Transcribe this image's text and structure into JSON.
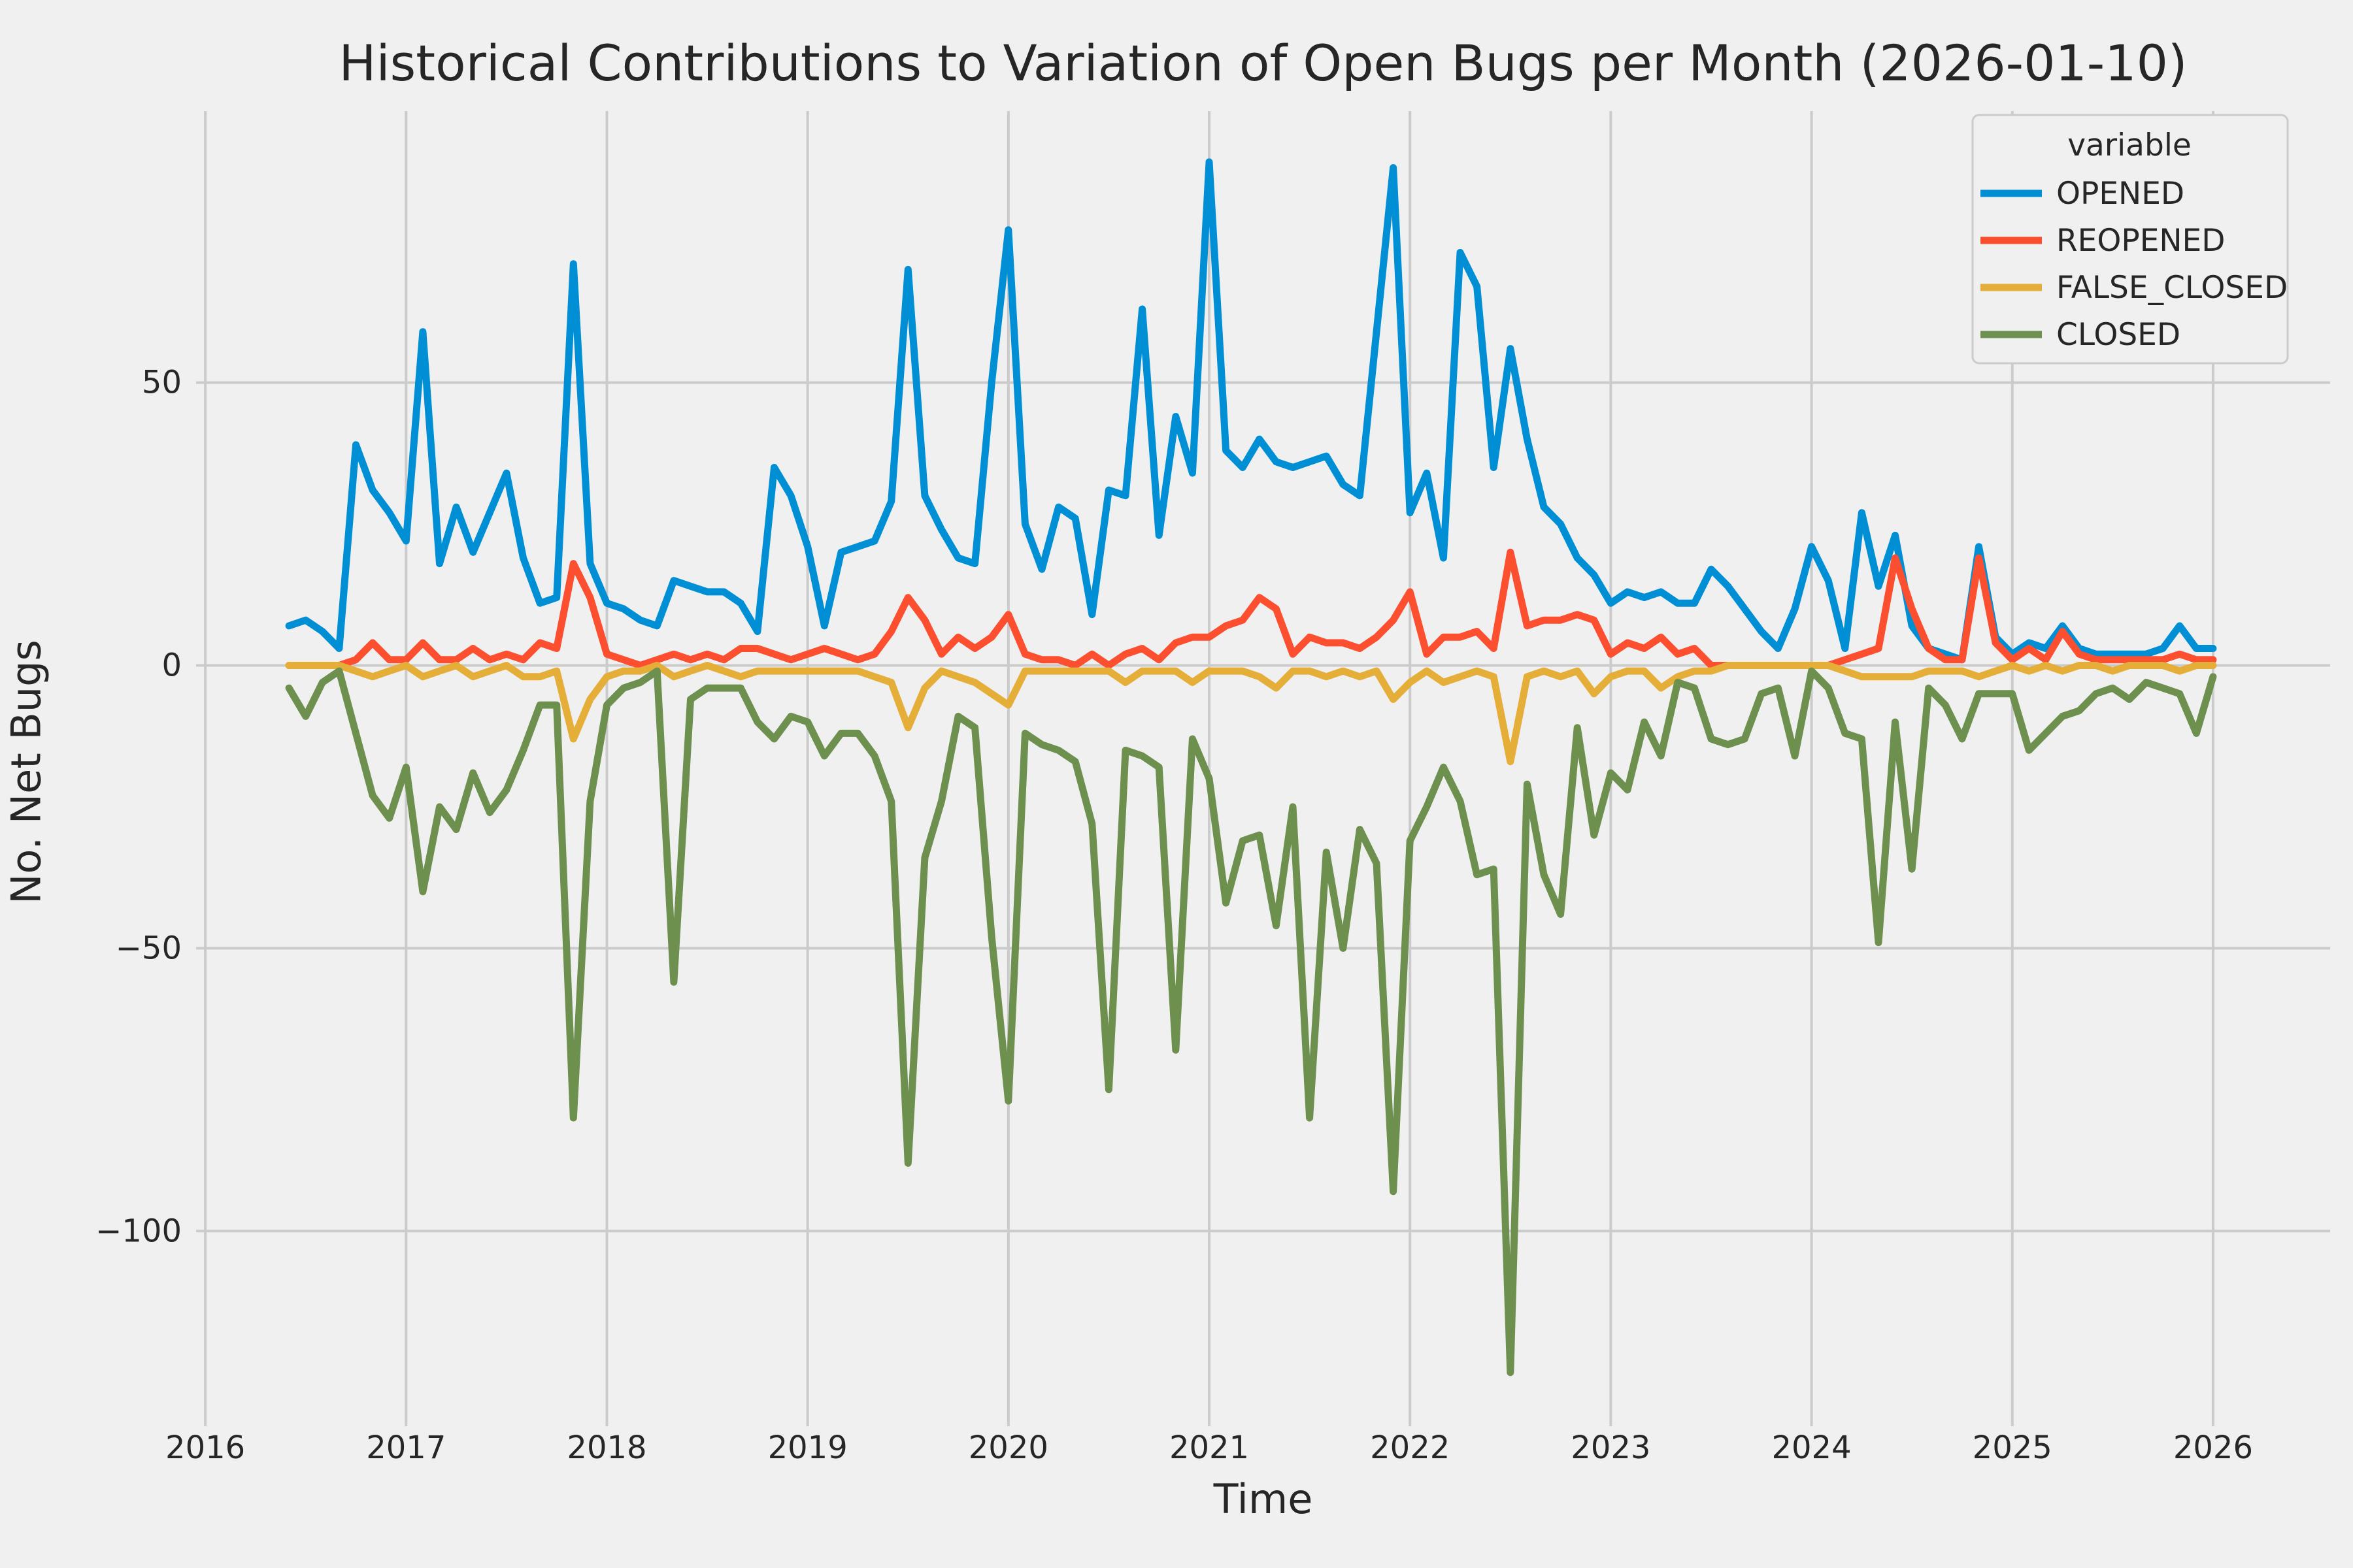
{
  "figure": {
    "title": "Historical Contributions to Variation of Open Bugs per Month (2026-01-10)",
    "xlabel": "Time",
    "ylabel": "No. Net Bugs"
  },
  "chart_data": {
    "type": "line",
    "title": "Historical Contributions to Variation of Open Bugs per Month (2026-01-10)",
    "xlabel": "Time",
    "ylabel": "No. Net Bugs",
    "background_color": "#f0f0f0",
    "grid_color": "#cbcbcb",
    "text_color": "#262626",
    "grid": true,
    "xticks": [
      2016,
      2017,
      2018,
      2019,
      2020,
      2021,
      2022,
      2023,
      2024,
      2025,
      2026
    ],
    "yticks": [
      50,
      0,
      -50,
      -100
    ],
    "xlim": [
      2015.954,
      2026.583
    ],
    "ylim": [
      -134.5,
      98.0
    ],
    "legend": {
      "title": "variable",
      "position": "upper right",
      "entries": [
        "OPENED",
        "REOPENED",
        "FALSE_CLOSED",
        "CLOSED"
      ]
    },
    "x_months": [
      "2016-06",
      "2016-07",
      "2016-08",
      "2016-09",
      "2016-10",
      "2016-11",
      "2016-12",
      "2017-01",
      "2017-02",
      "2017-03",
      "2017-04",
      "2017-05",
      "2017-06",
      "2017-07",
      "2017-08",
      "2017-09",
      "2017-10",
      "2017-11",
      "2017-12",
      "2018-01",
      "2018-02",
      "2018-03",
      "2018-04",
      "2018-05",
      "2018-06",
      "2018-07",
      "2018-08",
      "2018-09",
      "2018-10",
      "2018-11",
      "2018-12",
      "2019-01",
      "2019-02",
      "2019-03",
      "2019-04",
      "2019-05",
      "2019-06",
      "2019-07",
      "2019-08",
      "2019-09",
      "2019-10",
      "2019-11",
      "2019-12",
      "2020-01",
      "2020-02",
      "2020-03",
      "2020-04",
      "2020-05",
      "2020-06",
      "2020-07",
      "2020-08",
      "2020-09",
      "2020-10",
      "2020-11",
      "2020-12",
      "2021-01",
      "2021-02",
      "2021-03",
      "2021-04",
      "2021-05",
      "2021-06",
      "2021-07",
      "2021-08",
      "2021-09",
      "2021-10",
      "2021-11",
      "2021-12",
      "2022-01",
      "2022-02",
      "2022-03",
      "2022-04",
      "2022-05",
      "2022-06",
      "2022-07",
      "2022-08",
      "2022-09",
      "2022-10",
      "2022-11",
      "2022-12",
      "2023-01",
      "2023-02",
      "2023-03",
      "2023-04",
      "2023-05",
      "2023-06",
      "2023-07",
      "2023-08",
      "2023-09",
      "2023-10",
      "2023-11",
      "2023-12",
      "2024-01",
      "2024-02",
      "2024-03",
      "2024-04",
      "2024-05",
      "2024-06",
      "2024-07",
      "2024-08",
      "2024-09",
      "2024-10",
      "2024-11",
      "2024-12",
      "2025-01",
      "2025-02",
      "2025-03",
      "2025-04",
      "2025-05",
      "2025-06",
      "2025-07",
      "2025-08",
      "2025-09",
      "2025-10",
      "2025-11",
      "2025-12",
      "2026-01"
    ],
    "series": [
      {
        "name": "OPENED",
        "color": "#008fd5",
        "values": [
          7,
          8,
          6,
          3,
          39,
          31,
          27,
          22,
          59,
          18,
          28,
          20,
          27,
          34,
          19,
          11,
          12,
          71,
          18,
          11,
          10,
          8,
          7,
          15,
          14,
          13,
          13,
          11,
          6,
          35,
          30,
          21,
          7,
          20,
          21,
          22,
          29,
          70,
          30,
          24,
          19,
          18,
          50,
          77,
          25,
          17,
          28,
          26,
          9,
          31,
          30,
          63,
          23,
          44,
          34,
          89,
          38,
          35,
          40,
          36,
          35,
          36,
          37,
          32,
          30,
          59,
          88,
          27,
          34,
          19,
          73,
          67,
          35,
          56,
          40,
          28,
          25,
          19,
          16,
          11,
          13,
          12,
          13,
          11,
          11,
          17,
          14,
          10,
          6,
          3,
          10,
          21,
          15,
          3,
          27,
          14,
          23,
          7,
          3,
          2,
          1,
          21,
          5,
          2,
          4,
          3,
          7,
          3,
          2,
          2,
          2,
          2,
          3,
          7,
          3,
          3
        ]
      },
      {
        "name": "REOPENED",
        "color": "#fc4f30",
        "values": [
          0,
          0,
          0,
          0,
          1,
          4,
          1,
          1,
          4,
          1,
          1,
          3,
          1,
          2,
          1,
          4,
          3,
          18,
          12,
          2,
          1,
          0,
          1,
          2,
          1,
          2,
          1,
          3,
          3,
          2,
          1,
          2,
          3,
          2,
          1,
          2,
          6,
          12,
          8,
          2,
          5,
          3,
          5,
          9,
          2,
          1,
          1,
          0,
          2,
          0,
          2,
          3,
          1,
          4,
          5,
          5,
          7,
          8,
          12,
          10,
          2,
          5,
          4,
          4,
          3,
          5,
          8,
          13,
          2,
          5,
          5,
          6,
          3,
          20,
          7,
          8,
          8,
          9,
          8,
          2,
          4,
          3,
          5,
          2,
          3,
          0,
          0,
          0,
          0,
          0,
          0,
          0,
          0,
          1,
          2,
          3,
          19,
          10,
          3,
          1,
          1,
          19,
          4,
          1,
          3,
          1,
          6,
          2,
          1,
          1,
          1,
          1,
          1,
          2,
          1,
          1
        ]
      },
      {
        "name": "FALSE_CLOSED",
        "color": "#e5ae38",
        "values": [
          0,
          0,
          0,
          0,
          -1,
          -2,
          -1,
          0,
          -2,
          -1,
          0,
          -2,
          -1,
          0,
          -2,
          -2,
          -1,
          -13,
          -6,
          -2,
          -1,
          -1,
          0,
          -2,
          -1,
          0,
          -1,
          -2,
          -1,
          -1,
          -1,
          -1,
          -1,
          -1,
          -1,
          -2,
          -3,
          -11,
          -4,
          -1,
          -2,
          -3,
          -5,
          -7,
          -1,
          -1,
          -1,
          -1,
          -1,
          -1,
          -3,
          -1,
          -1,
          -1,
          -3,
          -1,
          -1,
          -1,
          -2,
          -4,
          -1,
          -1,
          -2,
          -1,
          -2,
          -1,
          -6,
          -3,
          -1,
          -3,
          -2,
          -1,
          -2,
          -17,
          -2,
          -1,
          -2,
          -1,
          -5,
          -2,
          -1,
          -1,
          -4,
          -2,
          -1,
          -1,
          0,
          0,
          0,
          0,
          0,
          0,
          0,
          -1,
          -2,
          -2,
          -2,
          -2,
          -1,
          -1,
          -1,
          -2,
          -1,
          0,
          -1,
          0,
          -1,
          0,
          0,
          -1,
          0,
          0,
          0,
          -1,
          0,
          0
        ]
      },
      {
        "name": "CLOSED",
        "color": "#6d904f",
        "values": [
          -4,
          -9,
          -3,
          -1,
          -12,
          -23,
          -27,
          -18,
          -40,
          -25,
          -29,
          -19,
          -26,
          -22,
          -15,
          -7,
          -7,
          -80,
          -24,
          -7,
          -4,
          -3,
          -1,
          -56,
          -6,
          -4,
          -4,
          -4,
          -10,
          -13,
          -9,
          -10,
          -16,
          -12,
          -12,
          -16,
          -24,
          -88,
          -34,
          -24,
          -9,
          -11,
          -48,
          -77,
          -12,
          -14,
          -15,
          -17,
          -28,
          -75,
          -15,
          -16,
          -18,
          -68,
          -13,
          -20,
          -42,
          -31,
          -30,
          -46,
          -25,
          -80,
          -33,
          -50,
          -29,
          -35,
          -93,
          -31,
          -25,
          -18,
          -24,
          -37,
          -36,
          -125,
          -21,
          -37,
          -44,
          -11,
          -30,
          -19,
          -22,
          -10,
          -16,
          -3,
          -4,
          -13,
          -14,
          -13,
          -5,
          -4,
          -16,
          -1,
          -4,
          -12,
          -13,
          -49,
          -10,
          -36,
          -4,
          -7,
          -13,
          -5,
          -5,
          -5,
          -15,
          -12,
          -9,
          -8,
          -5,
          -4,
          -6,
          -3,
          -4,
          -5,
          -12,
          -2
        ]
      }
    ]
  }
}
